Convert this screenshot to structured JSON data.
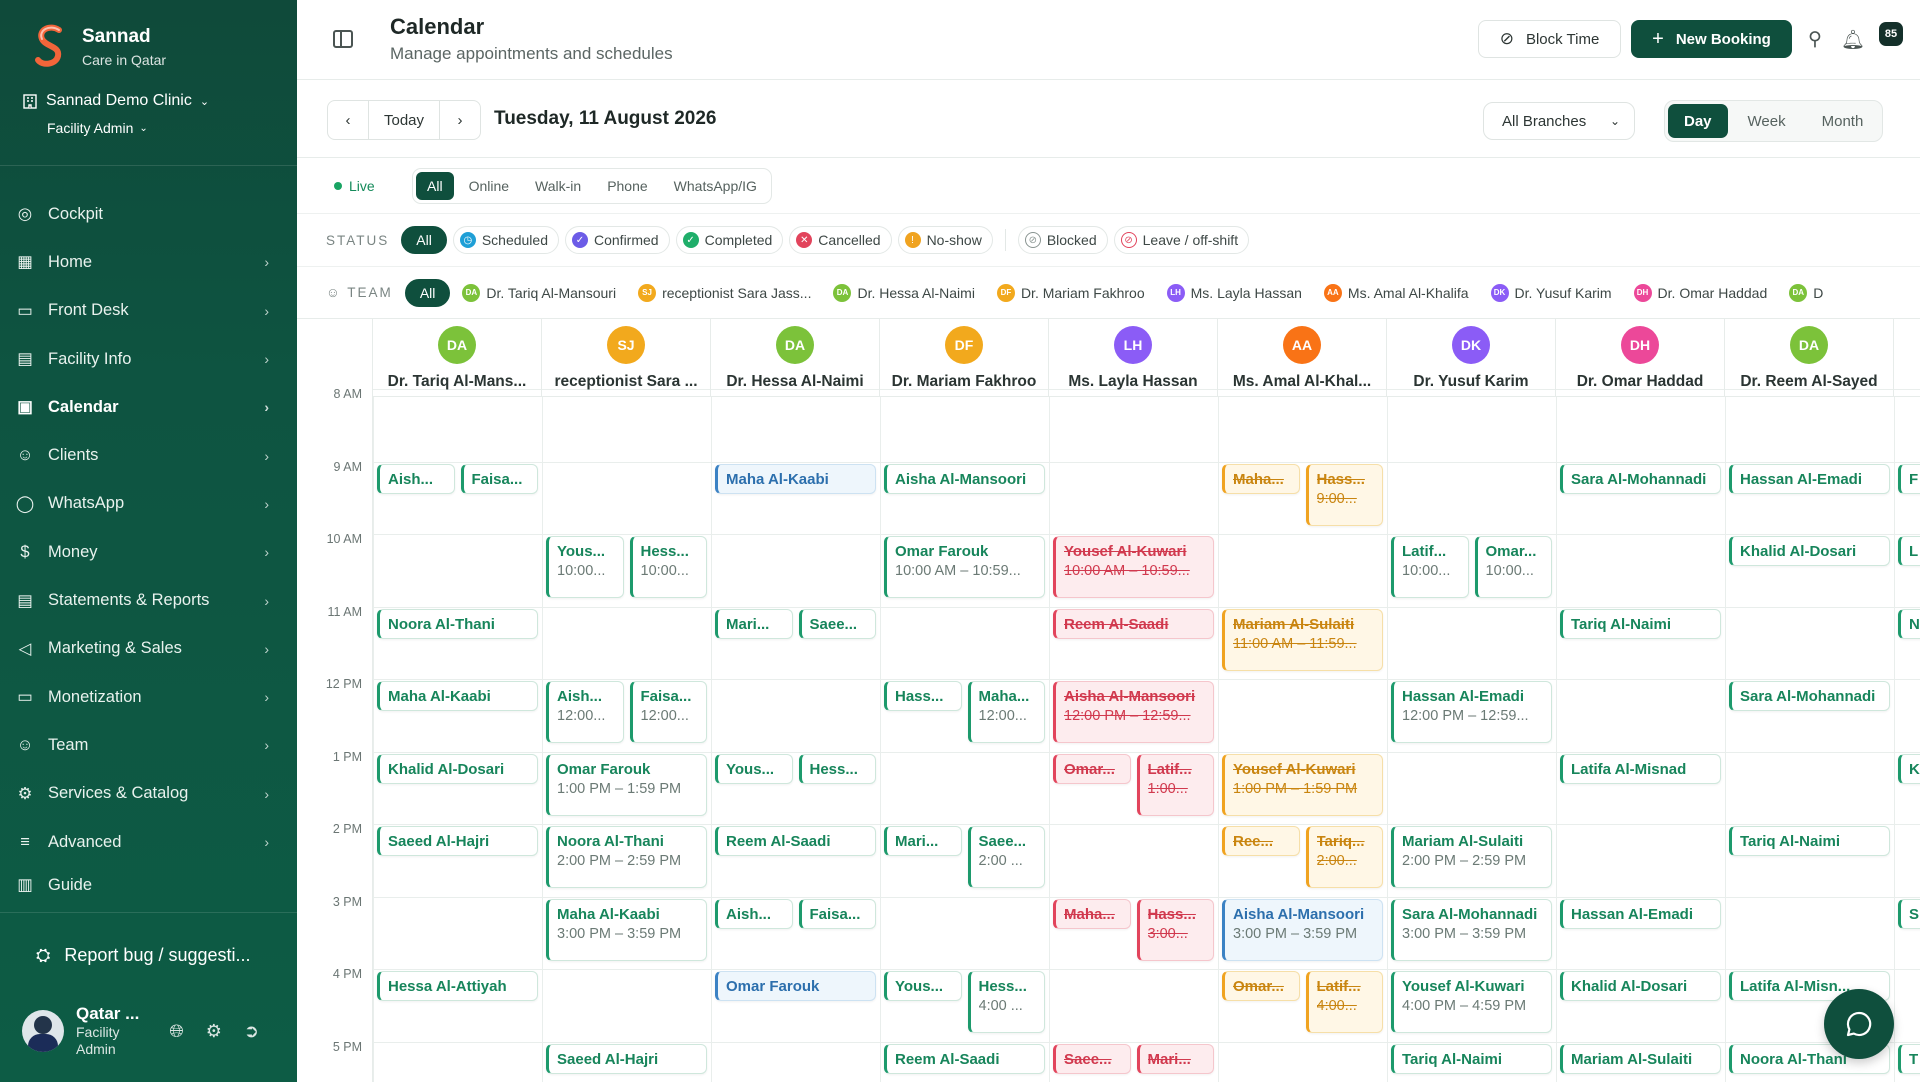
{
  "sidebar": {
    "brand": {
      "name": "Sannad",
      "tagline": "Care in Qatar"
    },
    "clinic": "Sannad Demo Clinic",
    "role": "Facility Admin",
    "items": [
      {
        "label": "Cockpit",
        "icon": "cockpit-icon",
        "chevron": false
      },
      {
        "label": "Home",
        "icon": "grid-icon",
        "chevron": true
      },
      {
        "label": "Front Desk",
        "icon": "monitor-icon",
        "chevron": true
      },
      {
        "label": "Facility Info",
        "icon": "building-icon",
        "chevron": true
      },
      {
        "label": "Calendar",
        "icon": "calendar-icon",
        "chevron": true,
        "active": true
      },
      {
        "label": "Clients",
        "icon": "users-icon",
        "chevron": true
      },
      {
        "label": "WhatsApp",
        "icon": "chat-icon",
        "chevron": true
      },
      {
        "label": "Money",
        "icon": "dollar-icon",
        "chevron": true
      },
      {
        "label": "Statements & Reports",
        "icon": "report-icon",
        "chevron": true
      },
      {
        "label": "Marketing & Sales",
        "icon": "megaphone-icon",
        "chevron": true
      },
      {
        "label": "Monetization",
        "icon": "card-icon",
        "chevron": true
      },
      {
        "label": "Team",
        "icon": "user-gear-icon",
        "chevron": true
      },
      {
        "label": "Services & Catalog",
        "icon": "gear-icon",
        "chevron": true
      },
      {
        "label": "Advanced",
        "icon": "sliders-icon",
        "chevron": true
      },
      {
        "label": "Guide",
        "icon": "book-icon",
        "chevron": false
      }
    ],
    "report_bug": "Report bug / suggesti...",
    "user": {
      "name": "Qatar ...",
      "role_line1": "Facility",
      "role_line2": "Admin"
    }
  },
  "header": {
    "title": "Calendar",
    "subtitle": "Manage appointments and schedules",
    "block_time": "Block Time",
    "new_booking": "New Booking",
    "notification_count": "85"
  },
  "datebar": {
    "today": "Today",
    "date": "Tuesday, 11 August 2026",
    "branch": "All Branches",
    "views": [
      "Day",
      "Week",
      "Month"
    ],
    "active_view": "Day"
  },
  "channels": {
    "live": "Live",
    "options": [
      "All",
      "Online",
      "Walk-in",
      "Phone",
      "WhatsApp/IG"
    ],
    "active": "All"
  },
  "status_filter": {
    "label": "STATUS",
    "all": "All",
    "options": [
      {
        "label": "Scheduled",
        "color": "#1f9fd6"
      },
      {
        "label": "Confirmed",
        "color": "#6c5ce7"
      },
      {
        "label": "Completed",
        "color": "#1fae6a"
      },
      {
        "label": "Cancelled",
        "color": "#e2445c"
      },
      {
        "label": "No-show",
        "color": "#f0a320"
      }
    ],
    "extra": [
      {
        "label": "Blocked",
        "color": "#8a9592"
      },
      {
        "label": "Leave / off-shift",
        "color": "#e2445c"
      }
    ]
  },
  "team_filter": {
    "label": "TEAM",
    "all": "All",
    "members": [
      {
        "initials": "DA",
        "name": "Dr. Tariq Al-Mansouri",
        "color": "#7cc23a"
      },
      {
        "initials": "SJ",
        "name": "receptionist Sara Jass...",
        "color": "#f2a91d"
      },
      {
        "initials": "DA",
        "name": "Dr. Hessa Al-Naimi",
        "color": "#7cc23a"
      },
      {
        "initials": "DF",
        "name": "Dr. Mariam Fakhroo",
        "color": "#f2a91d"
      },
      {
        "initials": "LH",
        "name": "Ms. Layla Hassan",
        "color": "#8b5cf6"
      },
      {
        "initials": "AA",
        "name": "Ms. Amal Al-Khalifa",
        "color": "#f97316"
      },
      {
        "initials": "DK",
        "name": "Dr. Yusuf Karim",
        "color": "#8b5cf6"
      },
      {
        "initials": "DH",
        "name": "Dr. Omar Haddad",
        "color": "#ec4899"
      },
      {
        "initials": "DA",
        "name": "D",
        "color": "#7cc23a"
      }
    ]
  },
  "calendar": {
    "times": [
      "8 AM",
      "9 AM",
      "10 AM",
      "11 AM",
      "12 PM",
      "1 PM",
      "2 PM",
      "3 PM",
      "4 PM",
      "5 PM"
    ],
    "columns": [
      {
        "initials": "DA",
        "name": "Dr. Tariq Al-Mans...",
        "color": "#7cc23a"
      },
      {
        "initials": "SJ",
        "name": "receptionist Sara ...",
        "color": "#f2a91d"
      },
      {
        "initials": "DA",
        "name": "Dr. Hessa Al-Naimi",
        "color": "#7cc23a"
      },
      {
        "initials": "DF",
        "name": "Dr. Mariam Fakhroo",
        "color": "#f2a91d"
      },
      {
        "initials": "LH",
        "name": "Ms. Layla Hassan",
        "color": "#8b5cf6"
      },
      {
        "initials": "AA",
        "name": "Ms. Amal Al-Khal...",
        "color": "#f97316"
      },
      {
        "initials": "DK",
        "name": "Dr. Yusuf Karim",
        "color": "#8b5cf6"
      },
      {
        "initials": "DH",
        "name": "Dr. Omar Haddad",
        "color": "#ec4899"
      },
      {
        "initials": "DA",
        "name": "Dr. Reem Al-Sayed",
        "color": "#7cc23a"
      },
      {
        "initials": "",
        "name": "D",
        "color": "#ffffff"
      }
    ],
    "appointments": [
      {
        "col": 0,
        "hour": 1,
        "part": 0,
        "of": 2,
        "name": "Aish...",
        "time": "",
        "style": "green"
      },
      {
        "col": 0,
        "hour": 1,
        "part": 1,
        "of": 2,
        "name": "Faisa...",
        "time": "",
        "style": "green"
      },
      {
        "col": 0,
        "hour": 3,
        "part": 0,
        "of": 1,
        "name": "Noora Al-Thani",
        "time": "",
        "style": "green"
      },
      {
        "col": 0,
        "hour": 4,
        "part": 0,
        "of": 1,
        "name": "Maha Al-Kaabi",
        "time": "",
        "style": "green"
      },
      {
        "col": 0,
        "hour": 5,
        "part": 0,
        "of": 1,
        "name": "Khalid Al-Dosari",
        "time": "",
        "style": "green"
      },
      {
        "col": 0,
        "hour": 6,
        "part": 0,
        "of": 1,
        "name": "Saeed Al-Hajri",
        "time": "",
        "style": "green"
      },
      {
        "col": 0,
        "hour": 8,
        "part": 0,
        "of": 1,
        "name": "Hessa Al-Attiyah",
        "time": "",
        "style": "green"
      },
      {
        "col": 1,
        "hour": 2,
        "part": 0,
        "of": 2,
        "name": "Yous...",
        "time": "10:00...",
        "style": "green"
      },
      {
        "col": 1,
        "hour": 2,
        "part": 1,
        "of": 2,
        "name": "Hess...",
        "time": "10:00...",
        "style": "green"
      },
      {
        "col": 1,
        "hour": 4,
        "part": 0,
        "of": 2,
        "name": "Aish...",
        "time": "12:00...",
        "style": "green"
      },
      {
        "col": 1,
        "hour": 4,
        "part": 1,
        "of": 2,
        "name": "Faisa...",
        "time": "12:00...",
        "style": "green"
      },
      {
        "col": 1,
        "hour": 5,
        "part": 0,
        "of": 1,
        "name": "Omar Farouk",
        "time": "1:00 PM – 1:59 PM",
        "style": "green"
      },
      {
        "col": 1,
        "hour": 6,
        "part": 0,
        "of": 1,
        "name": "Noora Al-Thani",
        "time": "2:00 PM – 2:59 PM",
        "style": "green"
      },
      {
        "col": 1,
        "hour": 7,
        "part": 0,
        "of": 1,
        "name": "Maha Al-Kaabi",
        "time": "3:00 PM – 3:59 PM",
        "style": "green"
      },
      {
        "col": 1,
        "hour": 9,
        "part": 0,
        "of": 1,
        "name": "Saeed Al-Hajri",
        "time": "",
        "style": "green"
      },
      {
        "col": 2,
        "hour": 1,
        "part": 0,
        "of": 1,
        "name": "Maha Al-Kaabi",
        "time": "",
        "style": "blue"
      },
      {
        "col": 2,
        "hour": 3,
        "part": 0,
        "of": 2,
        "name": "Mari...",
        "time": "",
        "style": "green"
      },
      {
        "col": 2,
        "hour": 3,
        "part": 1,
        "of": 2,
        "name": "Saee...",
        "time": "",
        "style": "green"
      },
      {
        "col": 2,
        "hour": 5,
        "part": 0,
        "of": 2,
        "name": "Yous...",
        "time": "",
        "style": "green"
      },
      {
        "col": 2,
        "hour": 5,
        "part": 1,
        "of": 2,
        "name": "Hess...",
        "time": "",
        "style": "green"
      },
      {
        "col": 2,
        "hour": 6,
        "part": 0,
        "of": 1,
        "name": "Reem Al-Saadi",
        "time": "",
        "style": "green"
      },
      {
        "col": 2,
        "hour": 7,
        "part": 0,
        "of": 2,
        "name": "Aish...",
        "time": "",
        "style": "green"
      },
      {
        "col": 2,
        "hour": 7,
        "part": 1,
        "of": 2,
        "name": "Faisa...",
        "time": "",
        "style": "green"
      },
      {
        "col": 2,
        "hour": 8,
        "part": 0,
        "of": 1,
        "name": "Omar Farouk",
        "time": "",
        "style": "blue"
      },
      {
        "col": 3,
        "hour": 1,
        "part": 0,
        "of": 1,
        "name": "Aisha Al-Mansoori",
        "time": "",
        "style": "green"
      },
      {
        "col": 3,
        "hour": 2,
        "part": 0,
        "of": 1,
        "name": "Omar Farouk",
        "time": "10:00 AM – 10:59...",
        "style": "green"
      },
      {
        "col": 3,
        "hour": 4,
        "part": 0,
        "of": 2,
        "name": "Hass...",
        "time": "",
        "style": "green"
      },
      {
        "col": 3,
        "hour": 4,
        "part": 1,
        "of": 2,
        "name": "Maha...",
        "time": "12:00...",
        "style": "green"
      },
      {
        "col": 3,
        "hour": 6,
        "part": 0,
        "of": 2,
        "name": "Mari...",
        "time": "",
        "style": "green"
      },
      {
        "col": 3,
        "hour": 6,
        "part": 1,
        "of": 2,
        "name": "Saee...",
        "time": "2:00 ...",
        "style": "green"
      },
      {
        "col": 3,
        "hour": 8,
        "part": 0,
        "of": 2,
        "name": "Yous...",
        "time": "",
        "style": "green"
      },
      {
        "col": 3,
        "hour": 8,
        "part": 1,
        "of": 2,
        "name": "Hess...",
        "time": "4:00 ...",
        "style": "green"
      },
      {
        "col": 3,
        "hour": 9,
        "part": 0,
        "of": 1,
        "name": "Reem Al-Saadi",
        "time": "",
        "style": "green"
      },
      {
        "col": 4,
        "hour": 2,
        "part": 0,
        "of": 1,
        "name": "Yousef Al-Kuwari",
        "time": "10:00 AM – 10:59...",
        "style": "red"
      },
      {
        "col": 4,
        "hour": 3,
        "part": 0,
        "of": 1,
        "name": "Reem Al-Saadi",
        "time": "",
        "style": "red"
      },
      {
        "col": 4,
        "hour": 4,
        "part": 0,
        "of": 1,
        "name": "Aisha Al-Mansoori",
        "time": "12:00 PM – 12:59...",
        "style": "red"
      },
      {
        "col": 4,
        "hour": 5,
        "part": 0,
        "of": 2,
        "name": "Omar...",
        "time": "",
        "style": "red"
      },
      {
        "col": 4,
        "hour": 5,
        "part": 1,
        "of": 2,
        "name": "Latif...",
        "time": "1:00...",
        "style": "red"
      },
      {
        "col": 4,
        "hour": 7,
        "part": 0,
        "of": 2,
        "name": "Maha...",
        "time": "",
        "style": "red"
      },
      {
        "col": 4,
        "hour": 7,
        "part": 1,
        "of": 2,
        "name": "Hass...",
        "time": "3:00...",
        "style": "red"
      },
      {
        "col": 4,
        "hour": 9,
        "part": 0,
        "of": 2,
        "name": "Saee...",
        "time": "",
        "style": "red"
      },
      {
        "col": 4,
        "hour": 9,
        "part": 1,
        "of": 2,
        "name": "Mari...",
        "time": "",
        "style": "red"
      },
      {
        "col": 5,
        "hour": 1,
        "part": 0,
        "of": 2,
        "name": "Maha...",
        "time": "",
        "style": "amber"
      },
      {
        "col": 5,
        "hour": 1,
        "part": 1,
        "of": 2,
        "name": "Hass...",
        "time": "9:00...",
        "style": "amber"
      },
      {
        "col": 5,
        "hour": 3,
        "part": 0,
        "of": 1,
        "name": "Mariam Al-Sulaiti",
        "time": "11:00 AM – 11:59...",
        "style": "amber"
      },
      {
        "col": 5,
        "hour": 5,
        "part": 0,
        "of": 1,
        "name": "Yousef Al-Kuwari",
        "time": "1:00 PM – 1:59 PM",
        "style": "amber"
      },
      {
        "col": 5,
        "hour": 6,
        "part": 0,
        "of": 2,
        "name": "Ree...",
        "time": "",
        "style": "amber"
      },
      {
        "col": 5,
        "hour": 6,
        "part": 1,
        "of": 2,
        "name": "Tariq...",
        "time": "2:00...",
        "style": "amber"
      },
      {
        "col": 5,
        "hour": 7,
        "part": 0,
        "of": 1,
        "name": "Aisha Al-Mansoori",
        "time": "3:00 PM – 3:59 PM",
        "style": "blue"
      },
      {
        "col": 5,
        "hour": 8,
        "part": 0,
        "of": 2,
        "name": "Omar...",
        "time": "",
        "style": "amber"
      },
      {
        "col": 5,
        "hour": 8,
        "part": 1,
        "of": 2,
        "name": "Latif...",
        "time": "4:00...",
        "style": "amber"
      },
      {
        "col": 6,
        "hour": 2,
        "part": 0,
        "of": 2,
        "name": "Latif...",
        "time": "10:00...",
        "style": "green"
      },
      {
        "col": 6,
        "hour": 2,
        "part": 1,
        "of": 2,
        "name": "Omar...",
        "time": "10:00...",
        "style": "green"
      },
      {
        "col": 6,
        "hour": 4,
        "part": 0,
        "of": 1,
        "name": "Hassan Al-Emadi",
        "time": "12:00 PM – 12:59...",
        "style": "green"
      },
      {
        "col": 6,
        "hour": 6,
        "part": 0,
        "of": 1,
        "name": "Mariam Al-Sulaiti",
        "time": "2:00 PM – 2:59 PM",
        "style": "green"
      },
      {
        "col": 6,
        "hour": 7,
        "part": 0,
        "of": 1,
        "name": "Sara Al-Mohannadi",
        "time": "3:00 PM – 3:59 PM",
        "style": "green"
      },
      {
        "col": 6,
        "hour": 8,
        "part": 0,
        "of": 1,
        "name": "Yousef Al-Kuwari",
        "time": "4:00 PM – 4:59 PM",
        "style": "green"
      },
      {
        "col": 6,
        "hour": 9,
        "part": 0,
        "of": 1,
        "name": "Tariq Al-Naimi",
        "time": "",
        "style": "green"
      },
      {
        "col": 7,
        "hour": 1,
        "part": 0,
        "of": 1,
        "name": "Sara Al-Mohannadi",
        "time": "",
        "style": "green"
      },
      {
        "col": 7,
        "hour": 3,
        "part": 0,
        "of": 1,
        "name": "Tariq Al-Naimi",
        "time": "",
        "style": "green"
      },
      {
        "col": 7,
        "hour": 5,
        "part": 0,
        "of": 1,
        "name": "Latifa Al-Misnad",
        "time": "",
        "style": "green"
      },
      {
        "col": 7,
        "hour": 7,
        "part": 0,
        "of": 1,
        "name": "Hassan Al-Emadi",
        "time": "",
        "style": "green"
      },
      {
        "col": 7,
        "hour": 8,
        "part": 0,
        "of": 1,
        "name": "Khalid Al-Dosari",
        "time": "",
        "style": "green"
      },
      {
        "col": 7,
        "hour": 9,
        "part": 0,
        "of": 1,
        "name": "Mariam Al-Sulaiti",
        "time": "",
        "style": "green"
      },
      {
        "col": 8,
        "hour": 1,
        "part": 0,
        "of": 1,
        "name": "Hassan Al-Emadi",
        "time": "",
        "style": "green"
      },
      {
        "col": 8,
        "hour": 2,
        "part": 0,
        "of": 1,
        "name": "Khalid Al-Dosari",
        "time": "",
        "style": "green"
      },
      {
        "col": 8,
        "hour": 4,
        "part": 0,
        "of": 1,
        "name": "Sara Al-Mohannadi",
        "time": "",
        "style": "green"
      },
      {
        "col": 8,
        "hour": 6,
        "part": 0,
        "of": 1,
        "name": "Tariq Al-Naimi",
        "time": "",
        "style": "green"
      },
      {
        "col": 8,
        "hour": 8,
        "part": 0,
        "of": 1,
        "name": "Latifa Al-Misn...",
        "time": "",
        "style": "green"
      },
      {
        "col": 8,
        "hour": 9,
        "part": 0,
        "of": 1,
        "name": "Noora Al-Thani",
        "time": "",
        "style": "green"
      },
      {
        "col": 9,
        "hour": 1,
        "part": 0,
        "of": 1,
        "name": "F",
        "time": "",
        "style": "green"
      },
      {
        "col": 9,
        "hour": 2,
        "part": 0,
        "of": 1,
        "name": "L",
        "time": "",
        "style": "green"
      },
      {
        "col": 9,
        "hour": 3,
        "part": 0,
        "of": 1,
        "name": "N",
        "time": "",
        "style": "green"
      },
      {
        "col": 9,
        "hour": 5,
        "part": 0,
        "of": 1,
        "name": "K",
        "time": "",
        "style": "green"
      },
      {
        "col": 9,
        "hour": 7,
        "part": 0,
        "of": 1,
        "name": "S",
        "time": "",
        "style": "green"
      },
      {
        "col": 9,
        "hour": 9,
        "part": 0,
        "of": 1,
        "name": "T",
        "time": "",
        "style": "green"
      }
    ]
  }
}
